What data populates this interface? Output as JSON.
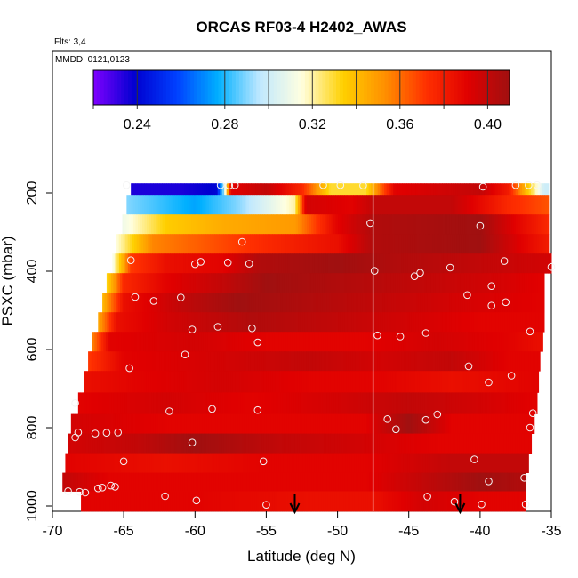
{
  "chart_data": {
    "type": "heatmap",
    "title": "ORCAS RF03-4 H2402_AWAS",
    "annotations": [
      "Flts: 3,4",
      "MMDD: 0121,0123"
    ],
    "xlabel": "Latitude (deg N)",
    "ylabel": "PSXC (mbar)",
    "xlim": [
      -70,
      -35
    ],
    "ylim": [
      1000,
      100
    ],
    "y_reversed": true,
    "xticks": [
      -70,
      -65,
      -60,
      -55,
      -50,
      -45,
      -40,
      -35
    ],
    "yticks": [
      200,
      400,
      600,
      800,
      1000
    ],
    "colorbar": {
      "range": [
        0.22,
        0.41
      ],
      "ticks": [
        0.24,
        0.28,
        0.32,
        0.36,
        0.4
      ],
      "tick_labels": [
        "0.24",
        "0.28",
        "0.32",
        "0.36",
        "0.40"
      ],
      "colors": [
        "#7f00ff",
        "#0000d0",
        "#0040ff",
        "#00b0ff",
        "#c0e8ff",
        "#ffffe0",
        "#ffd000",
        "#ff9000",
        "#ff3000",
        "#e00000",
        "#a01010"
      ]
    },
    "vertical_line_lat": -47.5,
    "arrows_lat": [
      -53,
      -41.4
    ],
    "layers": [
      {
        "p": 180,
        "lat_min": -64.5,
        "lat_max": -35.2,
        "nodes": [
          [
            -64.5,
            0.235
          ],
          [
            -61,
            0.235
          ],
          [
            -58.5,
            0.24
          ],
          [
            -58,
            0.29
          ],
          [
            -57.5,
            0.39
          ],
          [
            -55,
            0.4
          ],
          [
            -52.5,
            0.375
          ],
          [
            -50.5,
            0.33
          ],
          [
            -48,
            0.33
          ],
          [
            -46,
            0.39
          ],
          [
            -40,
            0.4
          ],
          [
            -38,
            0.38
          ],
          [
            -35.5,
            0.3
          ]
        ]
      },
      {
        "p": 230,
        "lat_min": -64.8,
        "lat_max": -35.2,
        "nodes": [
          [
            -64.8,
            0.29
          ],
          [
            -60,
            0.275
          ],
          [
            -57,
            0.29
          ],
          [
            -53,
            0.32
          ],
          [
            -52.2,
            0.395
          ],
          [
            -49,
            0.39
          ],
          [
            -47.5,
            0.4
          ],
          [
            -42,
            0.4
          ],
          [
            -38,
            0.375
          ],
          [
            -35.2,
            0.365
          ]
        ]
      },
      {
        "p": 280,
        "lat_min": -65.1,
        "lat_max": -35.2,
        "nodes": [
          [
            -65.1,
            0.31
          ],
          [
            -62,
            0.335
          ],
          [
            -58,
            0.345
          ],
          [
            -53,
            0.35
          ],
          [
            -50,
            0.39
          ],
          [
            -47.5,
            0.405
          ],
          [
            -40,
            0.41
          ],
          [
            -37.5,
            0.39
          ],
          [
            -35.2,
            0.375
          ]
        ]
      },
      {
        "p": 330,
        "lat_min": -65.5,
        "lat_max": -35.2,
        "nodes": [
          [
            -65.5,
            0.315
          ],
          [
            -63,
            0.355
          ],
          [
            -59,
            0.365
          ],
          [
            -55,
            0.375
          ],
          [
            -50,
            0.385
          ],
          [
            -47.5,
            0.405
          ],
          [
            -40,
            0.41
          ],
          [
            -37,
            0.39
          ],
          [
            -35.2,
            0.38
          ]
        ]
      },
      {
        "p": 380,
        "lat_min": -65.8,
        "lat_max": -35.0,
        "nodes": [
          [
            -65.8,
            0.31
          ],
          [
            -64.5,
            0.37
          ],
          [
            -62,
            0.385
          ],
          [
            -58,
            0.39
          ],
          [
            -55.5,
            0.405
          ],
          [
            -50,
            0.41
          ],
          [
            -46,
            0.405
          ],
          [
            -40,
            0.4
          ],
          [
            -35,
            0.395
          ]
        ]
      },
      {
        "p": 430,
        "lat_min": -66.2,
        "lat_max": -35.5,
        "nodes": [
          [
            -66.2,
            0.33
          ],
          [
            -65,
            0.375
          ],
          [
            -62,
            0.39
          ],
          [
            -58,
            0.4
          ],
          [
            -55,
            0.41
          ],
          [
            -50,
            0.405
          ],
          [
            -44,
            0.4
          ],
          [
            -39,
            0.395
          ],
          [
            -35.5,
            0.39
          ]
        ]
      },
      {
        "p": 480,
        "lat_min": -66.5,
        "lat_max": -35.5,
        "nodes": [
          [
            -66.5,
            0.34
          ],
          [
            -65,
            0.385
          ],
          [
            -61,
            0.4
          ],
          [
            -57,
            0.41
          ],
          [
            -52,
            0.405
          ],
          [
            -47,
            0.4
          ],
          [
            -42,
            0.395
          ],
          [
            -35.5,
            0.39
          ]
        ]
      },
      {
        "p": 530,
        "lat_min": -66.8,
        "lat_max": -35.5,
        "nodes": [
          [
            -66.8,
            0.345
          ],
          [
            -65.5,
            0.385
          ],
          [
            -62,
            0.395
          ],
          [
            -56,
            0.405
          ],
          [
            -50,
            0.4
          ],
          [
            -45,
            0.395
          ],
          [
            -40,
            0.39
          ],
          [
            -35.5,
            0.39
          ]
        ]
      },
      {
        "p": 580,
        "lat_min": -67.2,
        "lat_max": -35.6,
        "nodes": [
          [
            -67.2,
            0.355
          ],
          [
            -66,
            0.39
          ],
          [
            -60,
            0.395
          ],
          [
            -55,
            0.39
          ],
          [
            -48,
            0.39
          ],
          [
            -43,
            0.395
          ],
          [
            -38,
            0.39
          ],
          [
            -35.6,
            0.385
          ]
        ]
      },
      {
        "p": 630,
        "lat_min": -67.5,
        "lat_max": -35.8,
        "nodes": [
          [
            -67.5,
            0.37
          ],
          [
            -65,
            0.39
          ],
          [
            -58,
            0.395
          ],
          [
            -52,
            0.4
          ],
          [
            -47,
            0.395
          ],
          [
            -42,
            0.4
          ],
          [
            -38,
            0.39
          ],
          [
            -35.8,
            0.39
          ]
        ]
      },
      {
        "p": 680,
        "lat_min": -67.8,
        "lat_max": -35.9,
        "nodes": [
          [
            -67.8,
            0.385
          ],
          [
            -64,
            0.39
          ],
          [
            -58,
            0.395
          ],
          [
            -52,
            0.39
          ],
          [
            -47,
            0.39
          ],
          [
            -42,
            0.385
          ],
          [
            -36,
            0.39
          ]
        ]
      },
      {
        "p": 740,
        "lat_min": -68.2,
        "lat_max": -36.0,
        "nodes": [
          [
            -68.2,
            0.39
          ],
          [
            -62,
            0.395
          ],
          [
            -56,
            0.39
          ],
          [
            -50,
            0.395
          ],
          [
            -45,
            0.4
          ],
          [
            -40,
            0.395
          ],
          [
            -36,
            0.39
          ]
        ]
      },
      {
        "p": 790,
        "lat_min": -68.7,
        "lat_max": -36.2,
        "nodes": [
          [
            -68.7,
            0.395
          ],
          [
            -62,
            0.39
          ],
          [
            -55,
            0.39
          ],
          [
            -48,
            0.39
          ],
          [
            -45,
            0.41
          ],
          [
            -42,
            0.39
          ],
          [
            -36.2,
            0.39
          ]
        ]
      },
      {
        "p": 840,
        "lat_min": -68.9,
        "lat_max": -36.4,
        "nodes": [
          [
            -68.9,
            0.395
          ],
          [
            -64,
            0.4
          ],
          [
            -60,
            0.41
          ],
          [
            -54,
            0.4
          ],
          [
            -48,
            0.395
          ],
          [
            -43,
            0.39
          ],
          [
            -36.4,
            0.39
          ]
        ]
      },
      {
        "p": 890,
        "lat_min": -69.1,
        "lat_max": -36.6,
        "nodes": [
          [
            -69.1,
            0.39
          ],
          [
            -62,
            0.385
          ],
          [
            -55,
            0.39
          ],
          [
            -48,
            0.39
          ],
          [
            -42,
            0.4
          ],
          [
            -36.6,
            0.4
          ]
        ]
      },
      {
        "p": 940,
        "lat_min": -69.3,
        "lat_max": -36.8,
        "nodes": [
          [
            -69.3,
            0.4
          ],
          [
            -66,
            0.39
          ],
          [
            -58,
            0.39
          ],
          [
            -52,
            0.39
          ],
          [
            -48,
            0.39
          ],
          [
            -44,
            0.4
          ],
          [
            -40,
            0.41
          ],
          [
            -36.8,
            0.405
          ]
        ]
      },
      {
        "p": 985,
        "lat_min": -68.0,
        "lat_max": -36.8,
        "nodes": [
          [
            -68,
            0.39
          ],
          [
            -60,
            0.39
          ],
          [
            -52,
            0.385
          ],
          [
            -47.5,
            0.385
          ],
          [
            -44,
            0.395
          ],
          [
            -40,
            0.39
          ],
          [
            -36.8,
            0.39
          ]
        ]
      }
    ],
    "sample_points": [
      [
        -64.8,
        180
      ],
      [
        -58.2,
        180
      ],
      [
        -57.6,
        181
      ],
      [
        -57.2,
        180
      ],
      [
        -51.0,
        180
      ],
      [
        -49.8,
        180
      ],
      [
        -48.2,
        181
      ],
      [
        -39.8,
        184
      ],
      [
        -37.5,
        180
      ],
      [
        -36.6,
        180
      ],
      [
        -36.0,
        180
      ],
      [
        -47.7,
        277
      ],
      [
        -40.0,
        284
      ],
      [
        -56.7,
        325
      ],
      [
        -64.5,
        372
      ],
      [
        -60.0,
        382
      ],
      [
        -59.6,
        376
      ],
      [
        -57.7,
        378
      ],
      [
        -56.2,
        381
      ],
      [
        -47.4,
        399
      ],
      [
        -44.2,
        404
      ],
      [
        -44.6,
        413
      ],
      [
        -42.1,
        391
      ],
      [
        -38.3,
        374
      ],
      [
        -35.0,
        389
      ],
      [
        -40.9,
        461
      ],
      [
        -39.2,
        488
      ],
      [
        -38.2,
        479
      ],
      [
        -39.2,
        438
      ],
      [
        -64.2,
        466
      ],
      [
        -62.9,
        476
      ],
      [
        -61.0,
        467
      ],
      [
        -60.2,
        549
      ],
      [
        -58.4,
        542
      ],
      [
        -56.0,
        546
      ],
      [
        -55.6,
        582
      ],
      [
        -47.2,
        564
      ],
      [
        -45.6,
        567
      ],
      [
        -43.8,
        558
      ],
      [
        -36.5,
        554
      ],
      [
        -64.6,
        648
      ],
      [
        -60.7,
        613
      ],
      [
        -40.8,
        643
      ],
      [
        -39.4,
        684
      ],
      [
        -37.8,
        667
      ],
      [
        -68.4,
        737
      ],
      [
        -61.8,
        758
      ],
      [
        -58.8,
        752
      ],
      [
        -55.6,
        755
      ],
      [
        -46.5,
        778
      ],
      [
        -45.9,
        804
      ],
      [
        -43.8,
        780
      ],
      [
        -43.0,
        766
      ],
      [
        -36.3,
        763
      ],
      [
        -68.4,
        825
      ],
      [
        -68.2,
        812
      ],
      [
        -67.0,
        815
      ],
      [
        -66.2,
        813
      ],
      [
        -65.4,
        812
      ],
      [
        -60.2,
        838
      ],
      [
        -36.5,
        800
      ],
      [
        -65.0,
        886
      ],
      [
        -55.2,
        886
      ],
      [
        -40.4,
        881
      ],
      [
        -39.4,
        937
      ],
      [
        -36.9,
        928
      ],
      [
        -68.9,
        962
      ],
      [
        -68.1,
        964
      ],
      [
        -67.7,
        966
      ],
      [
        -66.8,
        955
      ],
      [
        -66.5,
        953
      ],
      [
        -65.9,
        948
      ],
      [
        -65.6,
        951
      ],
      [
        -62.1,
        975
      ],
      [
        -59.9,
        986
      ],
      [
        -55.0,
        997
      ],
      [
        -43.7,
        976
      ],
      [
        -41.8,
        989
      ],
      [
        -39.9,
        996
      ],
      [
        -36.8,
        996
      ]
    ]
  }
}
